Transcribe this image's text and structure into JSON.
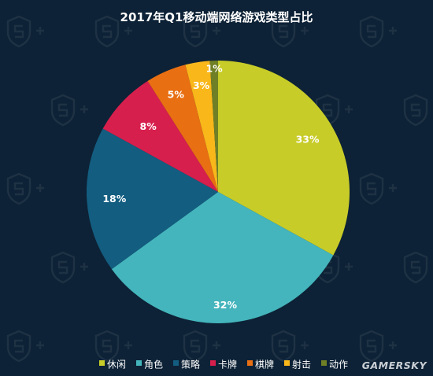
{
  "chart_data": {
    "type": "pie",
    "title": "2017年Q1移动端网络游戏类型占比",
    "categories": [
      "休闲",
      "角色",
      "策略",
      "卡牌",
      "棋牌",
      "射击",
      "动作"
    ],
    "values": [
      33,
      32,
      18,
      8,
      5,
      3,
      1
    ],
    "labels": [
      "33%",
      "32%",
      "18%",
      "8%",
      "5%",
      "3%",
      "1%"
    ],
    "colors": [
      "#c7cc28",
      "#44b5bc",
      "#135d80",
      "#d61f4d",
      "#e86f12",
      "#f9b71a",
      "#6e7f26"
    ],
    "legend_position": "bottom-left"
  },
  "watermark": {
    "text": "GAMERSKY",
    "icon": "shield-s-plus-icon"
  },
  "background_color": "#0d2236"
}
